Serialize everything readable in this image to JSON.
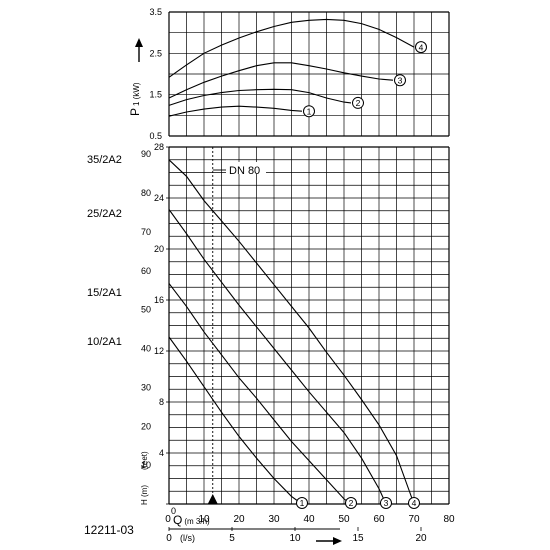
{
  "chart_data": [
    {
      "type": "line",
      "title": "",
      "ylabel": "P1 (kW)",
      "ylabel_main": "P",
      "ylabel_sub": "1 (kW)",
      "ylim": [
        0.5,
        3.5
      ],
      "y_ticks": [
        "0.5",
        "1.5",
        "2.5",
        "3.5"
      ],
      "xlim": [
        0,
        80
      ],
      "series": [
        {
          "name": "1",
          "x": [
            0,
            5,
            10,
            15,
            20,
            25,
            30,
            35,
            38
          ],
          "y": [
            0.98,
            1.08,
            1.15,
            1.2,
            1.22,
            1.2,
            1.17,
            1.12,
            1.1
          ]
        },
        {
          "name": "2",
          "x": [
            0,
            5,
            10,
            15,
            20,
            25,
            30,
            35,
            40,
            45,
            50,
            52
          ],
          "y": [
            1.24,
            1.38,
            1.48,
            1.55,
            1.6,
            1.62,
            1.63,
            1.62,
            1.55,
            1.42,
            1.32,
            1.3
          ]
        },
        {
          "name": "3",
          "x": [
            0,
            5,
            10,
            15,
            20,
            25,
            30,
            35,
            40,
            45,
            50,
            55,
            60,
            64
          ],
          "y": [
            1.42,
            1.62,
            1.8,
            1.95,
            2.08,
            2.2,
            2.27,
            2.27,
            2.2,
            2.12,
            2.03,
            1.95,
            1.88,
            1.85
          ]
        },
        {
          "name": "4",
          "x": [
            0,
            5,
            10,
            15,
            20,
            25,
            30,
            35,
            40,
            45,
            50,
            55,
            60,
            65,
            70
          ],
          "y": [
            1.92,
            2.22,
            2.5,
            2.7,
            2.87,
            3.02,
            3.15,
            3.25,
            3.3,
            3.32,
            3.3,
            3.22,
            3.08,
            2.88,
            2.65
          ]
        }
      ]
    },
    {
      "type": "line",
      "title": "",
      "ylabel": "H (m)",
      "ylabel_alt": "(feet)",
      "ylim": [
        0,
        28
      ],
      "y_ticks_m": [
        "0",
        "4",
        "8",
        "12",
        "16",
        "20",
        "24",
        "28"
      ],
      "y_ticks_feet": [
        "0",
        "10",
        "20",
        "30",
        "40",
        "50",
        "60",
        "70",
        "80",
        "90"
      ],
      "xlabel": "Q (m3/h)",
      "xlabel_main": "Q",
      "xlabel_unit": "(m 3/h)",
      "xlim": [
        0,
        80
      ],
      "x_ticks": [
        "0",
        "10",
        "20",
        "30",
        "40",
        "50",
        "60",
        "70",
        "80"
      ],
      "xlabel2": "(l/s)",
      "x2_ticks": [
        "0",
        "5",
        "10",
        "15",
        "20"
      ],
      "annotation": "DN 80",
      "marker_x": 12.5,
      "series": [
        {
          "name": "1",
          "x": [
            0,
            5,
            10,
            15,
            20,
            25,
            30,
            35,
            38
          ],
          "y": [
            13.1,
            11.2,
            9.2,
            7.2,
            5.3,
            3.6,
            2.0,
            0.6,
            0
          ]
        },
        {
          "name": "2",
          "x": [
            0,
            5,
            10,
            15,
            20,
            25,
            30,
            35,
            40,
            45,
            50,
            52
          ],
          "y": [
            17.3,
            15.5,
            13.5,
            11.7,
            9.9,
            8.3,
            6.6,
            4.9,
            3.4,
            1.9,
            0.4,
            0
          ]
        },
        {
          "name": "3",
          "x": [
            0,
            5,
            10,
            15,
            20,
            25,
            30,
            35,
            40,
            45,
            50,
            55,
            60,
            62
          ],
          "y": [
            23.1,
            21.2,
            19.2,
            17.4,
            15.6,
            13.9,
            12.2,
            10.5,
            8.8,
            7.2,
            5.6,
            3.6,
            1.2,
            0
          ]
        },
        {
          "name": "4",
          "x": [
            0,
            5,
            10,
            15,
            20,
            25,
            30,
            35,
            40,
            45,
            50,
            55,
            60,
            65,
            70
          ],
          "y": [
            27.0,
            25.7,
            23.8,
            22.2,
            20.6,
            18.9,
            17.2,
            15.5,
            13.8,
            11.9,
            10.1,
            8.2,
            6.2,
            3.8,
            0
          ]
        }
      ]
    }
  ],
  "pump_labels": [
    "35/2A2",
    "25/2A2",
    "15/2A1",
    "10/2A1"
  ],
  "figure_id": "12211-03",
  "colors": {
    "line": "#000000",
    "background": "#ffffff"
  }
}
